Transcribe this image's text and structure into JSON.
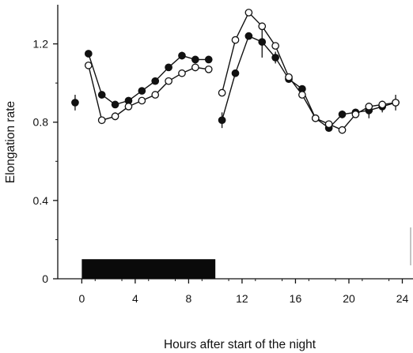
{
  "chart_data": {
    "type": "scatter",
    "title": "",
    "xlabel": "Hours after start of the night",
    "ylabel": "Elongation rate",
    "xlim": [
      -1.8,
      24.8
    ],
    "ylim": [
      0,
      1.4
    ],
    "x_ticks": [
      0,
      4,
      8,
      12,
      16,
      20,
      24
    ],
    "y_ticks": [
      0,
      0.4,
      0.8,
      1.2
    ],
    "x_tick_labels": [
      "0",
      "4",
      "8",
      "12",
      "16",
      "20",
      "24"
    ],
    "y_tick_labels": [
      "0",
      "0.4",
      "0.8",
      "1.2"
    ],
    "grid": false,
    "legend": "none",
    "dark_period_bar": {
      "x_start": 0,
      "x_end": 10,
      "y_top": 0.1
    },
    "series": [
      {
        "marker": "filled-circle",
        "color": "#111111",
        "segments": [
          [
            {
              "x": -0.5,
              "y": 0.9,
              "err": 0.04
            }
          ],
          [
            {
              "x": 0.5,
              "y": 1.15,
              "err": 0.0
            },
            {
              "x": 1.5,
              "y": 0.94,
              "err": 0.0
            },
            {
              "x": 2.5,
              "y": 0.89,
              "err": 0.0
            },
            {
              "x": 3.5,
              "y": 0.91,
              "err": 0.0
            },
            {
              "x": 4.5,
              "y": 0.96,
              "err": 0.0
            },
            {
              "x": 5.5,
              "y": 1.01,
              "err": 0.0
            },
            {
              "x": 6.5,
              "y": 1.08,
              "err": 0.0
            },
            {
              "x": 7.5,
              "y": 1.14,
              "err": 0.02
            },
            {
              "x": 8.5,
              "y": 1.12,
              "err": 0.0
            },
            {
              "x": 9.5,
              "y": 1.12,
              "err": 0.0
            }
          ],
          [
            {
              "x": 10.5,
              "y": 0.81,
              "err": 0.04
            },
            {
              "x": 11.5,
              "y": 1.05,
              "err": 0.0
            },
            {
              "x": 12.5,
              "y": 1.24,
              "err": 0.0
            },
            {
              "x": 13.5,
              "y": 1.21,
              "err": 0.08
            },
            {
              "x": 14.5,
              "y": 1.13,
              "err": 0.03
            },
            {
              "x": 15.5,
              "y": 1.02,
              "err": 0.0
            },
            {
              "x": 16.5,
              "y": 0.97,
              "err": 0.0
            },
            {
              "x": 17.5,
              "y": 0.82,
              "err": 0.0
            },
            {
              "x": 18.5,
              "y": 0.77,
              "err": 0.0
            },
            {
              "x": 19.5,
              "y": 0.84,
              "err": 0.02
            },
            {
              "x": 20.5,
              "y": 0.85,
              "err": 0.0
            },
            {
              "x": 21.5,
              "y": 0.86,
              "err": 0.04
            },
            {
              "x": 22.5,
              "y": 0.88,
              "err": 0.03
            },
            {
              "x": 23.5,
              "y": 0.9,
              "err": 0.04
            }
          ]
        ]
      },
      {
        "marker": "open-circle",
        "color": "#111111",
        "segments": [
          [
            {
              "x": 0.5,
              "y": 1.09,
              "err": 0.0
            },
            {
              "x": 1.5,
              "y": 0.81,
              "err": 0.0
            },
            {
              "x": 2.5,
              "y": 0.83,
              "err": 0.02
            },
            {
              "x": 3.5,
              "y": 0.88,
              "err": 0.0
            },
            {
              "x": 4.5,
              "y": 0.91,
              "err": 0.0
            },
            {
              "x": 5.5,
              "y": 0.94,
              "err": 0.0
            },
            {
              "x": 6.5,
              "y": 1.01,
              "err": 0.0
            },
            {
              "x": 7.5,
              "y": 1.05,
              "err": 0.0
            },
            {
              "x": 8.5,
              "y": 1.08,
              "err": 0.02
            },
            {
              "x": 9.5,
              "y": 1.07,
              "err": 0.0
            }
          ],
          [
            {
              "x": 10.5,
              "y": 0.95,
              "err": 0.0
            },
            {
              "x": 11.5,
              "y": 1.22,
              "err": 0.0
            },
            {
              "x": 12.5,
              "y": 1.36,
              "err": 0.0
            },
            {
              "x": 13.5,
              "y": 1.29,
              "err": 0.0
            },
            {
              "x": 14.5,
              "y": 1.19,
              "err": 0.0
            },
            {
              "x": 15.5,
              "y": 1.03,
              "err": 0.0
            },
            {
              "x": 16.5,
              "y": 0.94,
              "err": 0.0
            },
            {
              "x": 17.5,
              "y": 0.82,
              "err": 0.0
            },
            {
              "x": 18.5,
              "y": 0.79,
              "err": 0.0
            },
            {
              "x": 19.5,
              "y": 0.76,
              "err": 0.0
            },
            {
              "x": 20.5,
              "y": 0.84,
              "err": 0.0
            },
            {
              "x": 21.5,
              "y": 0.88,
              "err": 0.0
            },
            {
              "x": 22.5,
              "y": 0.89,
              "err": 0.0
            },
            {
              "x": 23.5,
              "y": 0.9,
              "err": 0.0
            }
          ]
        ]
      }
    ]
  }
}
